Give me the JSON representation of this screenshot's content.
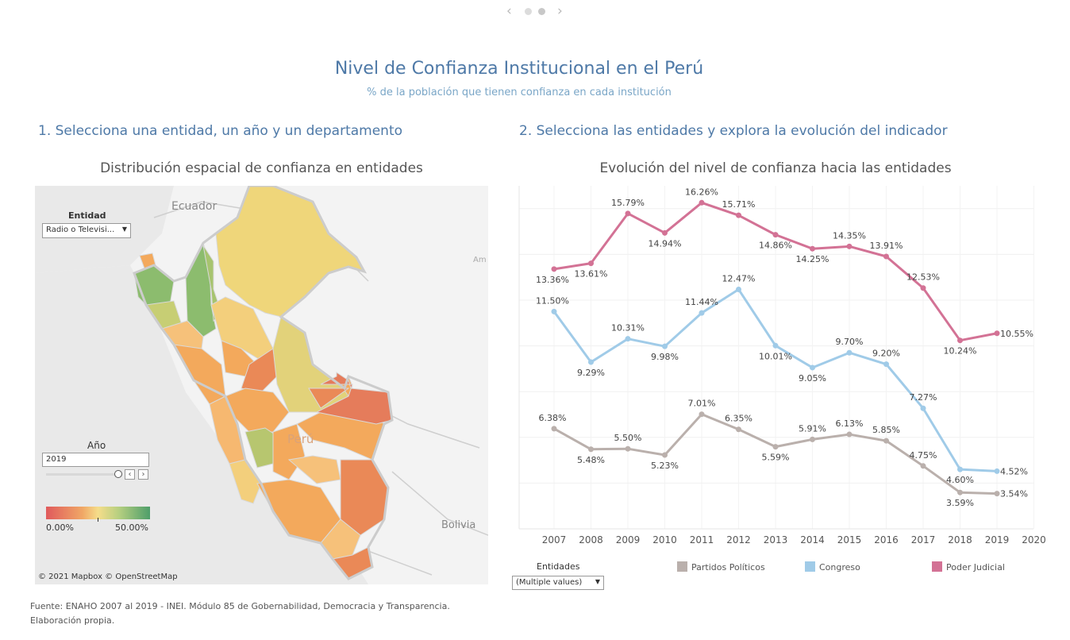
{
  "header": {
    "title": "Nivel de Confianza Institucional en el Perú",
    "subtitle": "% de la población que tienen confianza en cada institución"
  },
  "section1": {
    "title": "1. Selecciona una entidad, un año y un departamento",
    "map_title": "Distribución espacial de confianza en entidades",
    "entity_label": "Entidad",
    "entity_value": "Radio o Televisi...",
    "year_label": "Año",
    "year_value": "2019",
    "legend_min": "0.00%",
    "legend_max": "50.00%",
    "map_labels": {
      "ecuador": "Ecuador",
      "peru": "Perú",
      "bolivia": "Bolivia",
      "amazonas": "Am"
    },
    "attribution": "© 2021 Mapbox  © OpenStreetMap"
  },
  "section2": {
    "title": "2. Selecciona las entidades y explora la evolución del indicador",
    "chart_title": "Evolución del nivel de confianza hacia las entidades",
    "filter_label": "Entidades",
    "filter_value": "(Multiple values)"
  },
  "chart_data": {
    "type": "line",
    "x": [
      "2007",
      "2008",
      "2009",
      "2010",
      "2011",
      "2012",
      "2013",
      "2014",
      "2015",
      "2016",
      "2017",
      "2018",
      "2019"
    ],
    "x_ticks": [
      "2007",
      "2008",
      "2009",
      "2010",
      "2011",
      "2012",
      "2013",
      "2014",
      "2015",
      "2016",
      "2017",
      "2018",
      "2019",
      "2020"
    ],
    "ylim": [
      2,
      17
    ],
    "grid": true,
    "legend_position": "bottom",
    "series": [
      {
        "name": "Partidos Políticos",
        "color": "#bab0ac",
        "values": [
          6.38,
          5.48,
          5.5,
          5.23,
          7.01,
          6.35,
          5.59,
          5.91,
          6.13,
          5.85,
          4.75,
          3.59,
          3.54
        ],
        "labels": [
          "6.38%",
          "5.48%",
          "5.50%",
          "5.23%",
          "7.01%",
          "6.35%",
          "5.59%",
          "5.91%",
          "6.13%",
          "5.85%",
          "4.75%",
          "3.59%",
          "3.54%"
        ]
      },
      {
        "name": "Congreso",
        "color": "#a0cbe8",
        "values": [
          11.5,
          9.29,
          10.31,
          9.98,
          11.44,
          12.47,
          10.01,
          9.05,
          9.7,
          9.2,
          7.27,
          4.6,
          4.52
        ],
        "labels": [
          "11.50%",
          "9.29%",
          "10.31%",
          "9.98%",
          "11.44%",
          "12.47%",
          "10.01%",
          "9.05%",
          "9.70%",
          "9.20%",
          "7.27%",
          "4.60%",
          "4.52%"
        ]
      },
      {
        "name": "Poder Judicial",
        "color": "#d37295",
        "values": [
          13.36,
          13.61,
          15.79,
          14.94,
          16.26,
          15.71,
          14.86,
          14.25,
          14.35,
          13.91,
          12.53,
          10.24,
          10.55
        ],
        "labels": [
          "13.36%",
          "13.61%",
          "15.79%",
          "14.94%",
          "16.26%",
          "15.71%",
          "14.86%",
          "14.25%",
          "14.35%",
          "13.91%",
          "12.53%",
          "10.24%",
          "10.55%"
        ]
      }
    ]
  },
  "footer": {
    "source_line1": "Fuente: ENAHO 2007 al 2019 - INEI. Módulo 85 de Gobernabilidad, Democracia y Transparencia.",
    "source_line2": "Elaboración propia."
  }
}
